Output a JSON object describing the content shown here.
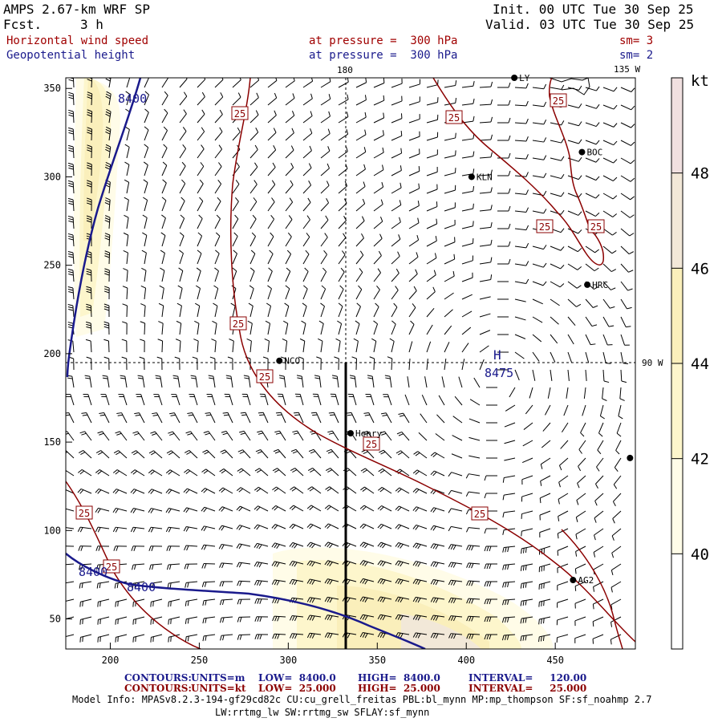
{
  "header": {
    "model": "AMPS 2.67-km WRF SP",
    "fcst_label": "Fcst.",
    "fcst_value": "3 h",
    "init": "Init. 00 UTC Tue 30 Sep 25",
    "valid": "Valid. 03 UTC Tue 30 Sep 25",
    "field1_name": "Horizontal wind speed",
    "field1_level": "at pressure =  300 hPa",
    "field1_sm": "sm= 3",
    "field2_name": "Geopotential height",
    "field2_level": "at pressure =  300 hPa",
    "field2_sm": "sm= 2"
  },
  "colors": {
    "speed_contour": "#8b0000",
    "height_contour": "#1a1a8c",
    "barb": "#000000",
    "shade_40": "#fffce8",
    "shade_42": "#fdf6cc",
    "shade_44": "#faefbb",
    "shade_46": "#f2e8d8",
    "shade_48": "#f0e0e0"
  },
  "map_labels": {
    "lon_180": "180",
    "lon_135w": "135 W",
    "lon_90w": "90 W",
    "high_letter": "H",
    "high_value": "8475",
    "h8400_top": "8400",
    "h8400_bl1": "8400",
    "h8400_bl2": "8400",
    "contour_25": "25"
  },
  "stations": [
    {
      "name": "LY",
      "gx": 427,
      "gy": 356
    },
    {
      "name": "BOC",
      "gx": 465,
      "gy": 314
    },
    {
      "name": "KLN",
      "gx": 403,
      "gy": 300
    },
    {
      "name": "HRC",
      "gx": 468,
      "gy": 239
    },
    {
      "name": "NCO",
      "gx": 295,
      "gy": 196
    },
    {
      "name": "Henry",
      "gx": 335,
      "gy": 155
    },
    {
      "name": "AG2",
      "gx": 460,
      "gy": 72
    },
    {
      "name": "",
      "gx": 492,
      "gy": 141
    }
  ],
  "chart_data": {
    "type": "contour",
    "title": "Horizontal wind speed / Geopotential height at pressure = 300 hPa",
    "x_axis": {
      "min": 175,
      "max": 495,
      "ticks": [
        200,
        250,
        300,
        350,
        400,
        450
      ]
    },
    "y_axis": {
      "min": 33,
      "max": 356,
      "ticks": [
        50,
        100,
        150,
        200,
        250,
        300,
        350
      ]
    },
    "colorbar": {
      "units": "kt",
      "levels": [
        40,
        42,
        44,
        46,
        48
      ],
      "range": [
        38,
        50
      ]
    },
    "contours": [
      {
        "field": "geopotential height",
        "units": "m",
        "low": "8400.0",
        "high": "8400.0",
        "interval": "120.00",
        "levels": [
          8400
        ]
      },
      {
        "field": "wind speed",
        "units": "kt",
        "low": "25.000",
        "high": "25.000",
        "interval": "25.000",
        "levels": [
          25
        ]
      }
    ],
    "high_center": {
      "label": "H",
      "value": 8475
    }
  },
  "footer": {
    "c1_label": "CONTOURS:",
    "c1_units": "UNITS=m",
    "c1_low": "LOW=  8400.0",
    "c1_high": "HIGH=  8400.0",
    "c1_interval": "INTERVAL=     120.00",
    "c2_label": "CONTOURS:",
    "c2_units": "UNITS=kt",
    "c2_low": "LOW=  25.000",
    "c2_high": "HIGH=  25.000",
    "c2_interval": "INTERVAL=     25.000",
    "model_info": "Model Info: MPASv8.2.3-194-gf29cd82c CU:cu_grell_freitas PBL:bl_mynn MP:mp_thompson SF:sf_noahmp 2.7",
    "model_info2": "LW:rrtmg_lw SW:rrtmg_sw SFLAY:sf_mynn"
  }
}
